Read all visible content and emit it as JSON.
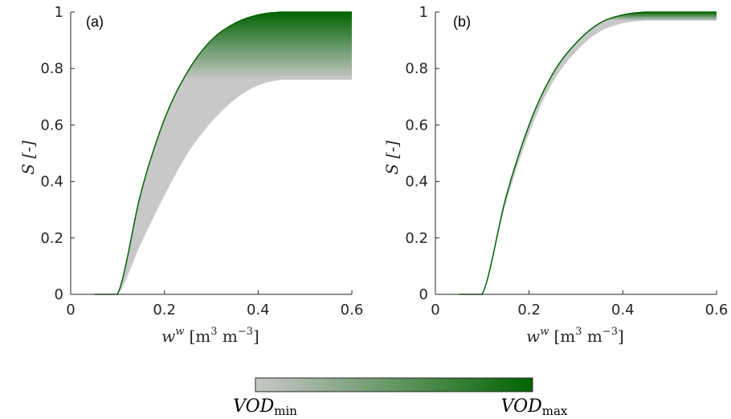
{
  "chart_data": [
    {
      "type": "area",
      "panel_label": "(a)",
      "xlabel_main": "w",
      "xlabel_sup": "w",
      "xlabel_unit": "[m",
      "xlabel_unit_sup1": "3",
      "xlabel_unit_mid": " m",
      "xlabel_unit_sup2": "−3",
      "xlabel_unit_end": "]",
      "ylabel": "S [-]",
      "xlim": [
        0,
        0.6
      ],
      "ylim": [
        0,
        1
      ],
      "xticks": [
        0,
        0.2,
        0.4,
        0.6
      ],
      "xtick_labels": [
        "0",
        "0.2",
        "0.4",
        "0.6"
      ],
      "yticks": [
        0,
        0.2,
        0.4,
        0.6,
        0.8,
        1
      ],
      "ytick_labels": [
        "0",
        "0.2",
        "0.4",
        "0.6",
        "0.8",
        "1"
      ],
      "band": {
        "x": [
          0.05,
          0.1,
          0.15,
          0.2,
          0.25,
          0.3,
          0.35,
          0.4,
          0.45,
          0.5,
          0.6
        ],
        "upper": [
          0,
          0,
          0.36,
          0.62,
          0.79,
          0.9,
          0.96,
          0.99,
          1.0,
          1.0,
          1.0
        ],
        "lower": [
          0,
          0,
          0.18,
          0.35,
          0.5,
          0.61,
          0.69,
          0.74,
          0.76,
          0.76,
          0.76
        ]
      },
      "colors": {
        "max": "#006400",
        "min": "#c8c8c8"
      }
    },
    {
      "type": "area",
      "panel_label": "(b)",
      "xlabel_main": "w",
      "xlabel_sup": "w",
      "xlabel_unit": "[m",
      "xlabel_unit_sup1": "3",
      "xlabel_unit_mid": " m",
      "xlabel_unit_sup2": "−3",
      "xlabel_unit_end": "]",
      "ylabel": "S [-]",
      "xlim": [
        0,
        0.6
      ],
      "ylim": [
        0,
        1
      ],
      "xticks": [
        0,
        0.2,
        0.4,
        0.6
      ],
      "xtick_labels": [
        "0",
        "0.2",
        "0.4",
        "0.6"
      ],
      "yticks": [
        0,
        0.2,
        0.4,
        0.6,
        0.8,
        1
      ],
      "ytick_labels": [
        "0",
        "0.2",
        "0.4",
        "0.6",
        "0.8",
        "1"
      ],
      "band": {
        "x": [
          0.05,
          0.1,
          0.15,
          0.2,
          0.25,
          0.3,
          0.35,
          0.4,
          0.45,
          0.5,
          0.6
        ],
        "upper": [
          0,
          0,
          0.34,
          0.6,
          0.78,
          0.89,
          0.96,
          0.99,
          1.0,
          1.0,
          1.0
        ],
        "lower": [
          0,
          0,
          0.32,
          0.57,
          0.75,
          0.86,
          0.93,
          0.96,
          0.97,
          0.97,
          0.97
        ]
      },
      "colors": {
        "max": "#006400",
        "min": "#c8c8c8"
      }
    }
  ],
  "colorbar": {
    "min_label_main": "VOD",
    "min_label_sub": "min",
    "max_label_main": "VOD",
    "max_label_sub": "max",
    "color_min": "#c8c8c8",
    "color_max": "#006400"
  }
}
